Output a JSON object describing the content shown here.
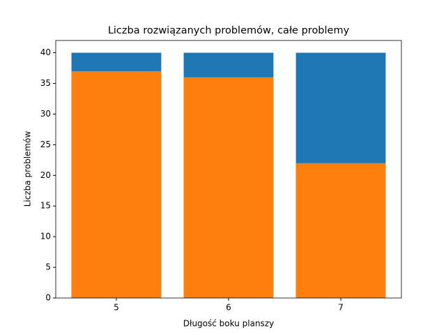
{
  "chart_data": {
    "type": "bar",
    "title": "Liczba rozwiązanych problemów, całe problemy",
    "x_label": "Długość boku planszy",
    "y_label": "Liczba problemów",
    "x": [
      5,
      6,
      7
    ],
    "series": [
      {
        "color": "#1f77b4",
        "values": [
          40,
          40,
          40
        ]
      },
      {
        "color": "#ff7f0e",
        "values": [
          37,
          36,
          22
        ]
      }
    ],
    "xlim": [
      4.46,
      7.54
    ],
    "xticks": [
      5,
      6,
      7
    ],
    "ylim": [
      0,
      42
    ],
    "yticks": [
      0,
      5,
      10,
      15,
      20,
      25,
      30,
      35,
      40
    ],
    "grid": false
  }
}
